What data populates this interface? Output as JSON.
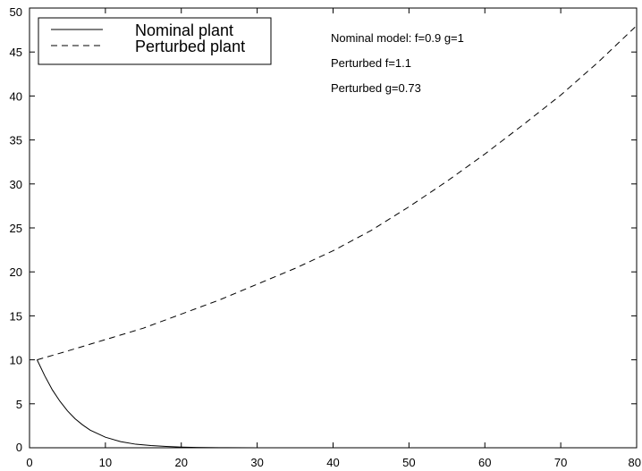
{
  "chart_data": {
    "type": "line",
    "title": "",
    "xlabel": "",
    "ylabel": "",
    "xlim": [
      0,
      80
    ],
    "ylim": [
      0,
      50
    ],
    "xticks": [
      0,
      10,
      20,
      30,
      40,
      50,
      60,
      70,
      80
    ],
    "yticks": [
      0,
      5,
      10,
      15,
      20,
      25,
      30,
      35,
      40,
      45,
      50
    ],
    "grid": false,
    "legend_position": "top-left",
    "series": [
      {
        "name": "Nominal plant",
        "style": "solid",
        "color": "#000000",
        "x": [
          1,
          2,
          3,
          4,
          5,
          6,
          7,
          8,
          10,
          12,
          14,
          16,
          18,
          20,
          22,
          25,
          30
        ],
        "y": [
          10,
          8.2,
          6.6,
          5.3,
          4.2,
          3.3,
          2.6,
          2.0,
          1.2,
          0.7,
          0.4,
          0.25,
          0.15,
          0.08,
          0.04,
          0.01,
          0
        ]
      },
      {
        "name": "Perturbed plant",
        "style": "dashed",
        "color": "#000000",
        "x": [
          1,
          5,
          10,
          15,
          20,
          25,
          30,
          35,
          40,
          45,
          50,
          55,
          60,
          65,
          70,
          75,
          80
        ],
        "y": [
          10,
          11,
          12.3,
          13.6,
          15.2,
          16.8,
          18.6,
          20.4,
          22.4,
          24.7,
          27.4,
          30.3,
          33.4,
          36.7,
          40.1,
          43.9,
          48
        ]
      }
    ],
    "annotations": [
      "Nominal model: f=0.9 g=1",
      "Perturbed f=1.1",
      "Perturbed g=0.73"
    ]
  }
}
